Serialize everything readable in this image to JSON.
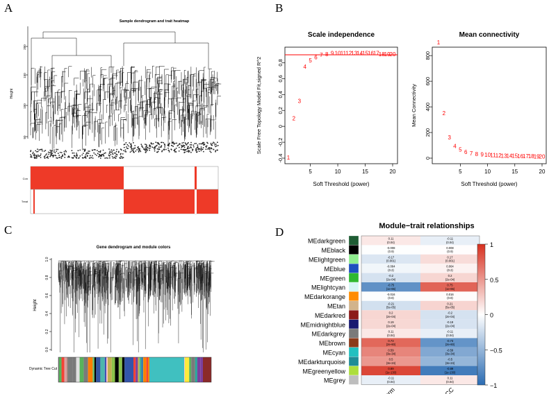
{
  "panels": {
    "a": {
      "letter": "A",
      "title": "Sample dendrogram and trait heatmap",
      "ylabel": "Height",
      "yticks": [
        "50",
        "100",
        "150",
        "200"
      ],
      "traits": [
        "Con",
        "Treat"
      ]
    },
    "b": {
      "letter": "B"
    },
    "c": {
      "letter": "C",
      "title": "Gene dendrogram and module colors",
      "ylabel": "Height",
      "yticks": [
        "0.0",
        "0.2",
        "0.4",
        "0.6",
        "0.8",
        "1.0"
      ],
      "color_row_label": "Dynamic Tree Cut"
    },
    "d": {
      "letter": "D"
    }
  },
  "chart_data": [
    {
      "type": "scatter",
      "title": "Scale independence",
      "xlabel": "Soft Threshold (power)",
      "ylabel": "Scale Free Topology Model Fit,signed R^2",
      "xlim": [
        1,
        20
      ],
      "ylim": [
        -0.45,
        1.0
      ],
      "xticks": [
        5,
        10,
        15,
        20
      ],
      "yticks": [
        -0.4,
        -0.2,
        0.0,
        0.2,
        0.4,
        0.6,
        0.8
      ],
      "hline": 0.9,
      "marker": "text-labels",
      "color": "#ff0000",
      "x": [
        1,
        2,
        3,
        4,
        5,
        6,
        7,
        8,
        9,
        10,
        11,
        12,
        13,
        14,
        15,
        16,
        17,
        18,
        19,
        20
      ],
      "y": [
        -0.39,
        0.1,
        0.32,
        0.75,
        0.83,
        0.87,
        0.9,
        0.91,
        0.92,
        0.92,
        0.92,
        0.92,
        0.92,
        0.92,
        0.92,
        0.92,
        0.92,
        0.91,
        0.91,
        0.91
      ]
    },
    {
      "type": "scatter",
      "title": "Mean connectivity",
      "xlabel": "Soft Threshold (power)",
      "ylabel": "Mean Connectivity",
      "xlim": [
        1,
        20
      ],
      "ylim": [
        0,
        1
      ],
      "xticks": [
        5,
        10,
        15,
        20
      ],
      "yticks": [
        0,
        200,
        400,
        600,
        800
      ],
      "marker": "text-labels",
      "color": "#ff0000",
      "x": [
        1,
        2,
        3,
        4,
        5,
        6,
        7,
        8,
        9,
        10,
        11,
        12,
        13,
        14,
        15,
        16,
        17,
        18,
        19,
        20
      ],
      "y": [
        0.95,
        0.37,
        0.17,
        0.1,
        0.07,
        0.05,
        0.04,
        0.035,
        0.03,
        0.027,
        0.025,
        0.023,
        0.021,
        0.02,
        0.019,
        0.018,
        0.017,
        0.016,
        0.015,
        0.015
      ]
    },
    {
      "type": "heatmap",
      "title": "Module−trait relationships",
      "columns": [
        "Norm",
        "ESCC"
      ],
      "rows": [
        {
          "name": "MEdarkgreen",
          "color": "#1f5c34",
          "cor": [
            0.11,
            -0.11
          ],
          "labels": [
            "0.11\n(0.04)",
            "-0.11\n(0.04)"
          ]
        },
        {
          "name": "MEblack",
          "color": "#000000",
          "cor": [
            -0.008,
            0.008
          ],
          "labels": [
            "-0.008\n(0.9)",
            "0.008\n(0.9)"
          ]
        },
        {
          "name": "MElightgreen",
          "color": "#90ee90",
          "cor": [
            -0.17,
            0.17
          ],
          "labels": [
            "-0.17\n(0.001)",
            "0.17\n(0.001)"
          ]
        },
        {
          "name": "MEblue",
          "color": "#1f4fbf",
          "cor": [
            -0.064,
            0.064
          ],
          "labels": [
            "-0.064\n(0.2)",
            "0.064\n(0.2)"
          ]
        },
        {
          "name": "MEgreen",
          "color": "#2fb82f",
          "cor": [
            -0.2,
            0.2
          ],
          "labels": [
            "-0.2\n(2e-04)",
            "0.2\n(2e-04)"
          ]
        },
        {
          "name": "MElightcyan",
          "color": "#d6f5f5",
          "cor": [
            -0.75,
            0.75
          ],
          "labels": [
            "-0.75\n(1e-65)",
            "0.75\n(1e-65)"
          ]
        },
        {
          "name": "MEdarkorange",
          "color": "#ff8c00",
          "cor": [
            -0.016,
            0.016
          ],
          "labels": [
            "-0.016\n(0.8)",
            "0.016\n(0.8)"
          ]
        },
        {
          "name": "MEtan",
          "color": "#d2b48c",
          "cor": [
            -0.21,
            0.21
          ],
          "labels": [
            "-0.21\n(5e-05)",
            "0.21\n(5e-05)"
          ]
        },
        {
          "name": "MEdarkred",
          "color": "#8b1a1a",
          "cor": [
            0.2,
            -0.2
          ],
          "labels": [
            "0.2\n(2e-04)",
            "-0.2\n(2e-04)"
          ]
        },
        {
          "name": "MEmidnightblue",
          "color": "#191970",
          "cor": [
            0.19,
            -0.19
          ],
          "labels": [
            "0.19\n(2e-04)",
            "-0.19\n(2e-04)"
          ]
        },
        {
          "name": "MEdarkgrey",
          "color": "#7a7a7a",
          "cor": [
            0.11,
            -0.11
          ],
          "labels": [
            "0.11\n(0.04)",
            "-0.11\n(0.04)"
          ]
        },
        {
          "name": "MEbrown",
          "color": "#8b3a1a",
          "cor": [
            0.73,
            -0.73
          ],
          "labels": [
            "0.73\n(2e-60)",
            "-0.73\n(2e-60)"
          ]
        },
        {
          "name": "MEcyan",
          "color": "#22c0c0",
          "cor": [
            0.59,
            -0.59
          ],
          "labels": [
            "0.59\n(3e-34)",
            "-0.59\n(3e-34)"
          ]
        },
        {
          "name": "MEdarkturquoise",
          "color": "#1e8c96",
          "cor": [
            0.5,
            -0.5
          ],
          "labels": [
            "0.5\n(3e-24)",
            "-0.5\n(3e-24)"
          ]
        },
        {
          "name": "MEgreenyellow",
          "color": "#adde3c",
          "cor": [
            0.89,
            -0.89
          ],
          "labels": [
            "0.89\n(1e-130)",
            "-0.89\n(1e-130)"
          ]
        },
        {
          "name": "MEgrey",
          "color": "#bebebe",
          "cor": [
            -0.11,
            0.11
          ],
          "labels": [
            "-0.11\n(0.04)",
            "0.11\n(0.04)"
          ]
        }
      ],
      "scale": {
        "min": -1,
        "max": 1,
        "ticks": [
          "1",
          "0.5",
          "0",
          "−0.5",
          "−1"
        ],
        "low": "#2b6cb3",
        "mid": "#ffffff",
        "high": "#d7301f"
      }
    }
  ]
}
